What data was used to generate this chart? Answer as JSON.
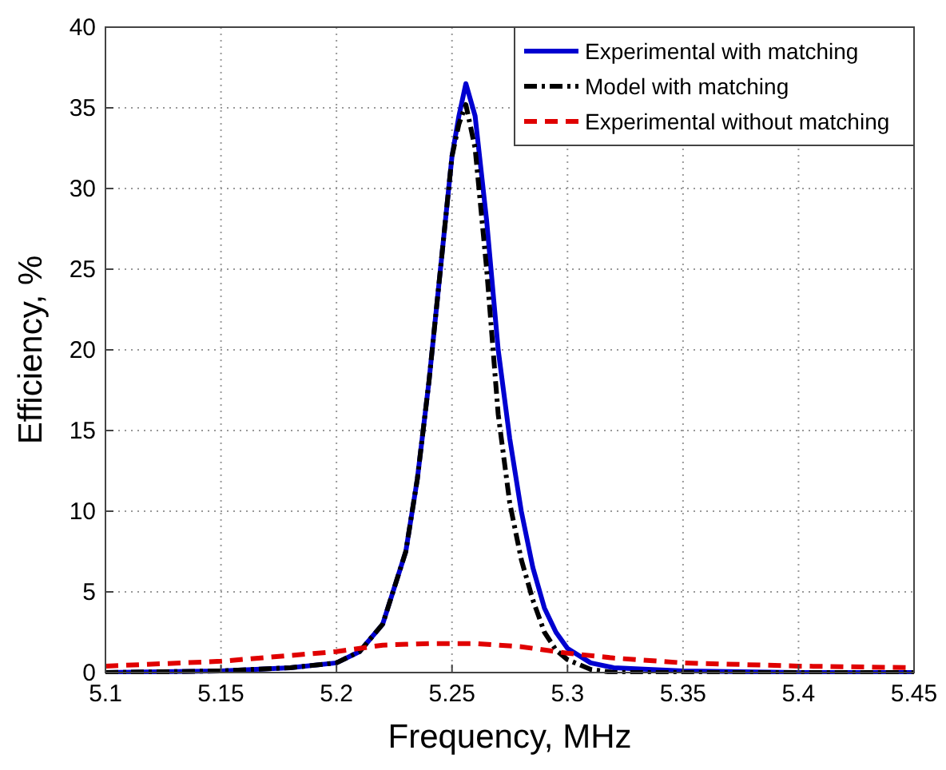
{
  "chart_data": {
    "type": "line",
    "xlabel": "Frequency, MHz",
    "ylabel": "Efficiency, %",
    "xlim": [
      5.1,
      5.45
    ],
    "ylim": [
      0,
      40
    ],
    "xticks": [
      5.1,
      5.15,
      5.2,
      5.25,
      5.3,
      5.35,
      5.4,
      5.45
    ],
    "yticks": [
      0,
      5,
      10,
      15,
      20,
      25,
      30,
      35,
      40
    ],
    "grid": true,
    "legend": "top right",
    "series": [
      {
        "name": "Experimental with matching",
        "color": "#0000d0",
        "line_style": "solid",
        "x": [
          5.1,
          5.15,
          5.18,
          5.2,
          5.21,
          5.22,
          5.23,
          5.235,
          5.24,
          5.245,
          5.25,
          5.253,
          5.256,
          5.26,
          5.265,
          5.27,
          5.275,
          5.28,
          5.285,
          5.29,
          5.295,
          5.3,
          5.31,
          5.32,
          5.35,
          5.4,
          5.45
        ],
        "values": [
          0,
          0.1,
          0.3,
          0.6,
          1.3,
          3,
          7.5,
          12,
          18,
          25,
          32,
          34.5,
          36.5,
          34.5,
          28,
          20,
          14.5,
          10,
          6.5,
          4,
          2.5,
          1.5,
          0.6,
          0.3,
          0.1,
          0,
          0
        ]
      },
      {
        "name": "Model with matching",
        "color": "#000000",
        "line_style": "dashdot",
        "x": [
          5.1,
          5.15,
          5.18,
          5.2,
          5.21,
          5.22,
          5.23,
          5.235,
          5.24,
          5.245,
          5.25,
          5.253,
          5.256,
          5.26,
          5.265,
          5.27,
          5.275,
          5.28,
          5.285,
          5.29,
          5.295,
          5.3,
          5.31,
          5.32,
          5.35,
          5.4,
          5.45
        ],
        "values": [
          0,
          0.1,
          0.3,
          0.6,
          1.3,
          3,
          7.5,
          12,
          18,
          25,
          32,
          34,
          35.2,
          32.5,
          25,
          16,
          10.5,
          7,
          4.5,
          2.5,
          1.4,
          0.8,
          0.2,
          0,
          0,
          0,
          0
        ]
      },
      {
        "name": "Experimental without matching",
        "color": "#e00000",
        "line_style": "dashed",
        "x": [
          5.1,
          5.15,
          5.2,
          5.22,
          5.24,
          5.25,
          5.26,
          5.28,
          5.3,
          5.32,
          5.35,
          5.4,
          5.45
        ],
        "values": [
          0.4,
          0.7,
          1.3,
          1.7,
          1.8,
          1.8,
          1.8,
          1.6,
          1.2,
          0.9,
          0.6,
          0.4,
          0.3
        ]
      }
    ]
  }
}
